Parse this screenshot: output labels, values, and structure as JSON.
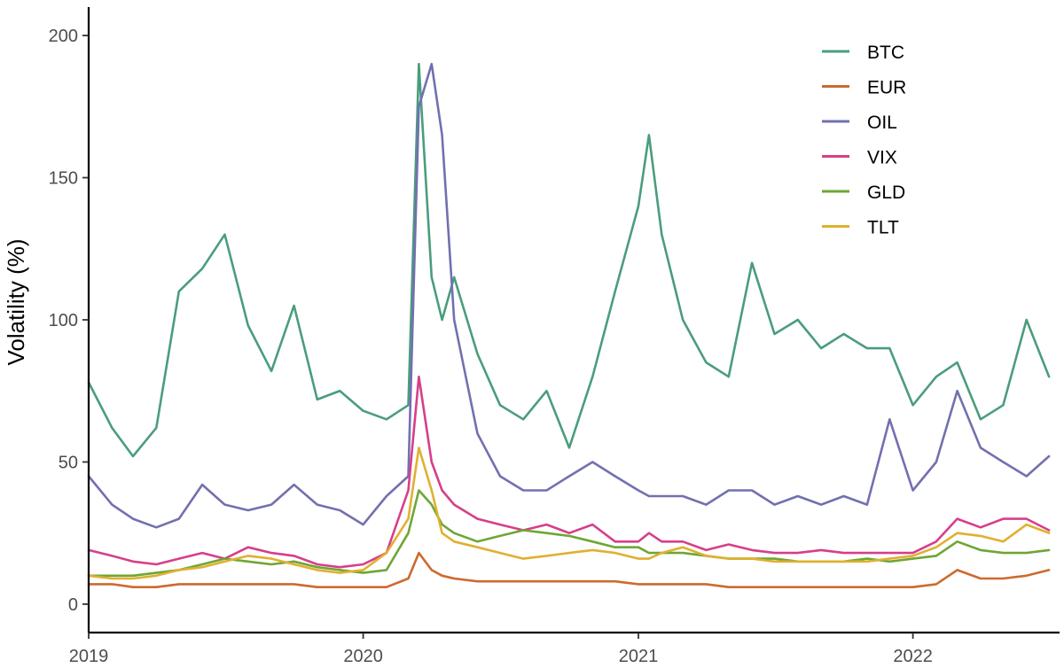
{
  "chart_data": {
    "type": "line",
    "title": "",
    "xlabel": "",
    "ylabel": "Volatility (%)",
    "x_ticks": [
      "2019",
      "2020",
      "2021",
      "2022"
    ],
    "y_ticks": [
      0,
      50,
      100,
      150,
      200
    ],
    "xlim": [
      "2019-01-01",
      "2022-07-15"
    ],
    "ylim": [
      -10,
      210
    ],
    "grid": false,
    "legend_position": "top-right",
    "x": [
      "2019-01-01",
      "2019-02-01",
      "2019-03-01",
      "2019-04-01",
      "2019-05-01",
      "2019-06-01",
      "2019-07-01",
      "2019-08-01",
      "2019-09-01",
      "2019-10-01",
      "2019-11-01",
      "2019-12-01",
      "2020-01-01",
      "2020-02-01",
      "2020-03-01",
      "2020-03-15",
      "2020-04-01",
      "2020-04-15",
      "2020-05-01",
      "2020-06-01",
      "2020-07-01",
      "2020-08-01",
      "2020-09-01",
      "2020-10-01",
      "2020-11-01",
      "2020-12-01",
      "2021-01-01",
      "2021-01-15",
      "2021-02-01",
      "2021-03-01",
      "2021-04-01",
      "2021-05-01",
      "2021-06-01",
      "2021-07-01",
      "2021-08-01",
      "2021-09-01",
      "2021-10-01",
      "2021-11-01",
      "2021-12-01",
      "2022-01-01",
      "2022-02-01",
      "2022-03-01",
      "2022-04-01",
      "2022-05-01",
      "2022-06-01",
      "2022-07-01"
    ],
    "series": [
      {
        "name": "BTC",
        "color": "#4a9d7c",
        "values": [
          78,
          62,
          52,
          62,
          110,
          118,
          130,
          98,
          82,
          105,
          72,
          75,
          68,
          65,
          70,
          190,
          115,
          100,
          115,
          88,
          70,
          65,
          75,
          55,
          80,
          110,
          140,
          165,
          130,
          100,
          85,
          80,
          120,
          95,
          100,
          90,
          95,
          90,
          90,
          70,
          80,
          85,
          65,
          70,
          100,
          80
        ]
      },
      {
        "name": "EUR",
        "color": "#cd6a2f",
        "values": [
          7,
          7,
          6,
          6,
          7,
          7,
          7,
          7,
          7,
          7,
          6,
          6,
          6,
          6,
          9,
          18,
          12,
          10,
          9,
          8,
          8,
          8,
          8,
          8,
          8,
          8,
          7,
          7,
          7,
          7,
          7,
          6,
          6,
          6,
          6,
          6,
          6,
          6,
          6,
          6,
          7,
          12,
          9,
          9,
          10,
          12
        ]
      },
      {
        "name": "OIL",
        "color": "#7270b0",
        "values": [
          45,
          35,
          30,
          27,
          30,
          42,
          35,
          33,
          35,
          42,
          35,
          33,
          28,
          38,
          45,
          175,
          190,
          165,
          100,
          60,
          45,
          40,
          40,
          45,
          50,
          45,
          40,
          38,
          38,
          38,
          35,
          40,
          40,
          35,
          38,
          35,
          38,
          35,
          65,
          40,
          50,
          75,
          55,
          50,
          45,
          52
        ]
      },
      {
        "name": "VIX",
        "color": "#d63f8a",
        "values": [
          19,
          17,
          15,
          14,
          16,
          18,
          16,
          20,
          18,
          17,
          14,
          13,
          14,
          18,
          40,
          80,
          50,
          40,
          35,
          30,
          28,
          26,
          28,
          25,
          28,
          22,
          22,
          25,
          22,
          22,
          19,
          21,
          19,
          18,
          18,
          19,
          18,
          18,
          18,
          18,
          22,
          30,
          27,
          30,
          30,
          26
        ]
      },
      {
        "name": "GLD",
        "color": "#6fa635",
        "values": [
          10,
          10,
          10,
          11,
          12,
          14,
          16,
          15,
          14,
          15,
          13,
          12,
          11,
          12,
          25,
          40,
          35,
          28,
          25,
          22,
          24,
          26,
          25,
          24,
          22,
          20,
          20,
          18,
          18,
          18,
          17,
          16,
          16,
          16,
          15,
          15,
          15,
          16,
          15,
          16,
          17,
          22,
          19,
          18,
          18,
          19
        ]
      },
      {
        "name": "TLT",
        "color": "#e0b030",
        "values": [
          10,
          9,
          9,
          10,
          12,
          13,
          15,
          17,
          16,
          14,
          12,
          11,
          12,
          18,
          30,
          55,
          40,
          25,
          22,
          20,
          18,
          16,
          17,
          18,
          19,
          18,
          16,
          16,
          18,
          20,
          17,
          16,
          16,
          15,
          15,
          15,
          15,
          15,
          16,
          17,
          20,
          25,
          24,
          22,
          28,
          25
        ]
      }
    ]
  }
}
